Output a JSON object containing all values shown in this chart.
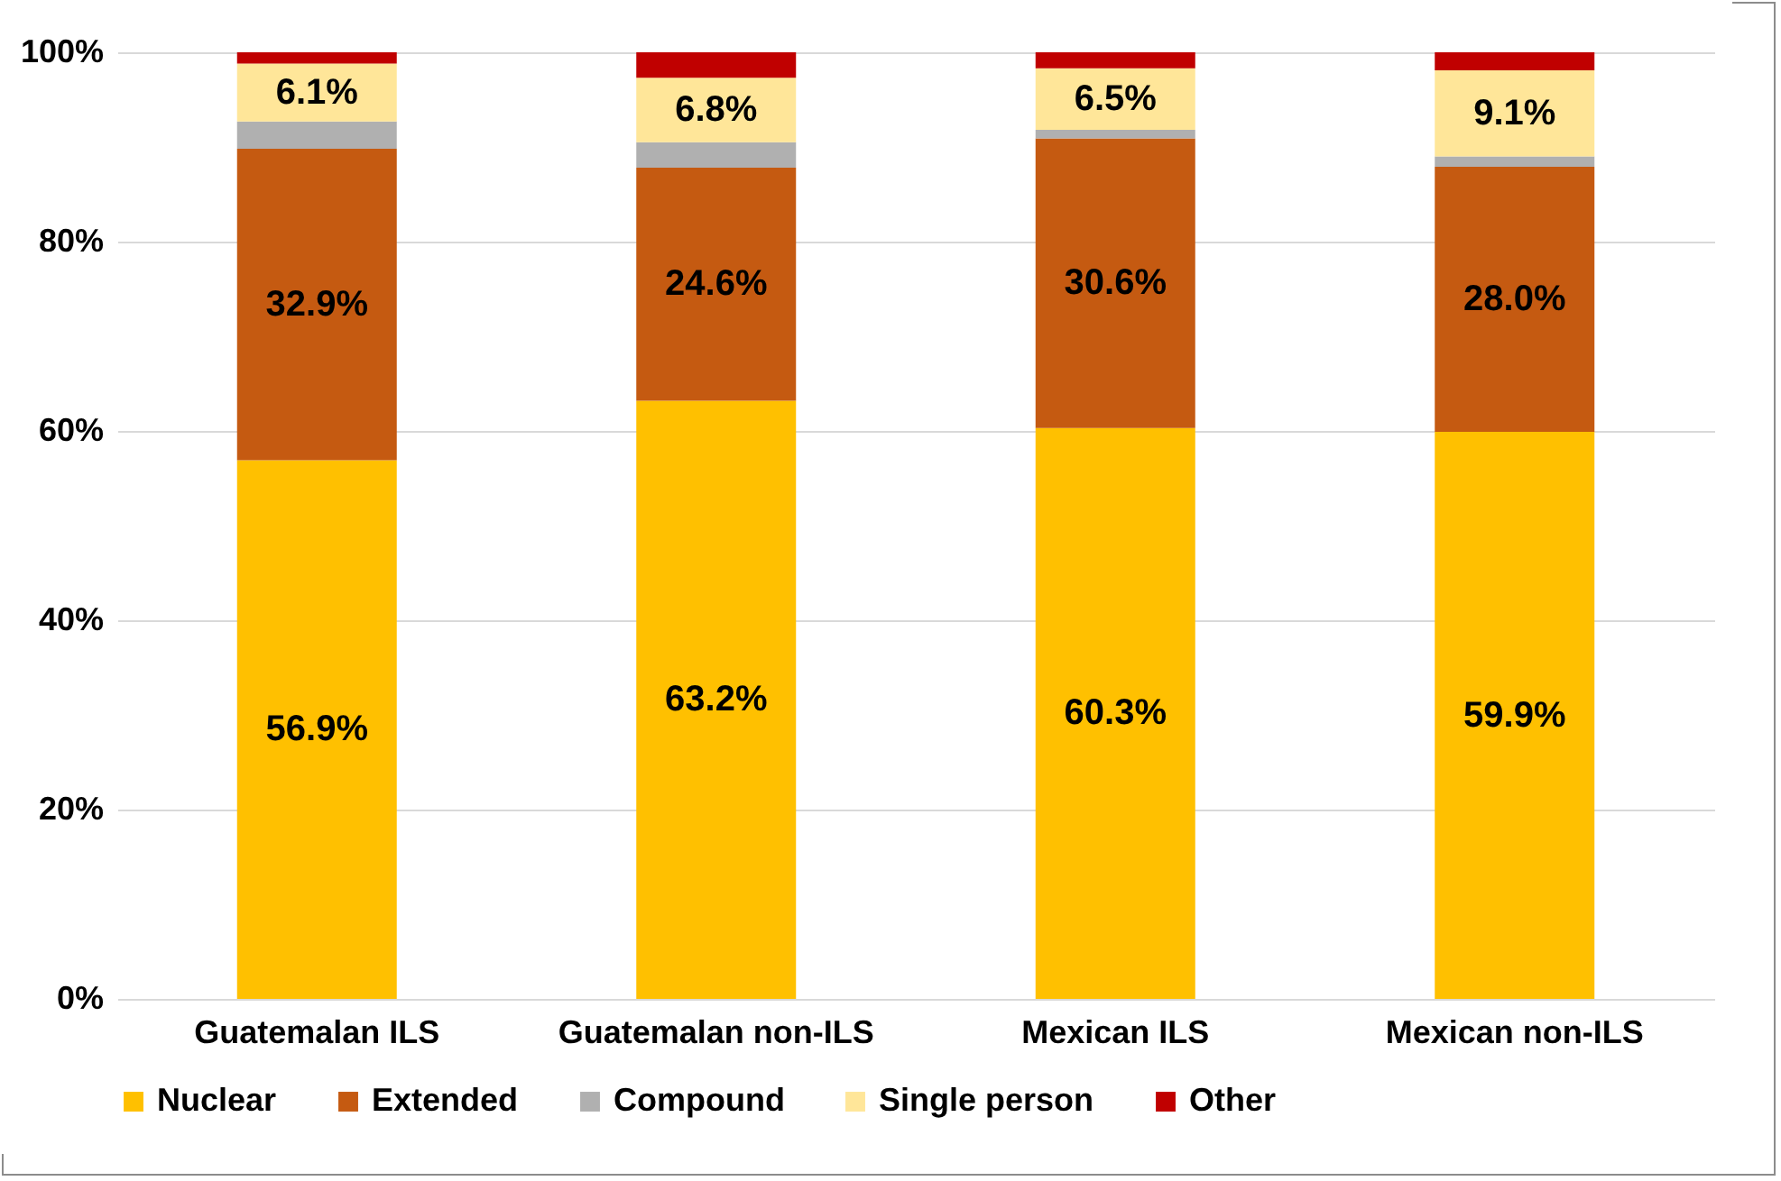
{
  "chart_data": {
    "type": "bar",
    "stacked": true,
    "categories": [
      "Guatemalan ILS",
      "Guatemalan non-ILS",
      "Mexican ILS",
      "Mexican non-ILS"
    ],
    "series": [
      {
        "name": "Nuclear",
        "color": "#ffc000",
        "values": [
          56.9,
          63.2,
          60.3,
          59.9
        ],
        "value_labels": [
          "56.9%",
          "63.2%",
          "60.3%",
          "59.9%"
        ]
      },
      {
        "name": "Extended",
        "color": "#c55a11",
        "values": [
          32.9,
          24.6,
          30.6,
          28.0
        ],
        "value_labels": [
          "32.9%",
          "24.6%",
          "30.6%",
          "28.0%"
        ]
      },
      {
        "name": "Compound",
        "color": "#b0b0b0",
        "values": [
          2.9,
          2.7,
          0.9,
          1.1
        ],
        "value_labels": [
          null,
          null,
          null,
          null
        ]
      },
      {
        "name": "Single person",
        "color": "#ffe699",
        "values": [
          6.1,
          6.8,
          6.5,
          9.1
        ],
        "value_labels": [
          "6.1%",
          "6.8%",
          "6.5%",
          "9.1%"
        ]
      },
      {
        "name": "Other",
        "color": "#c00000",
        "values": [
          1.2,
          2.7,
          1.7,
          1.9
        ],
        "value_labels": [
          null,
          null,
          null,
          null
        ]
      }
    ],
    "ylim": [
      0,
      100
    ],
    "yticks": [
      {
        "value": 0,
        "label": "0%"
      },
      {
        "value": 20,
        "label": "20%"
      },
      {
        "value": 40,
        "label": "40%"
      },
      {
        "value": 60,
        "label": "60%"
      },
      {
        "value": 80,
        "label": "80%"
      },
      {
        "value": 100,
        "label": "100%"
      }
    ],
    "grid": "y",
    "legend": "bottom"
  }
}
